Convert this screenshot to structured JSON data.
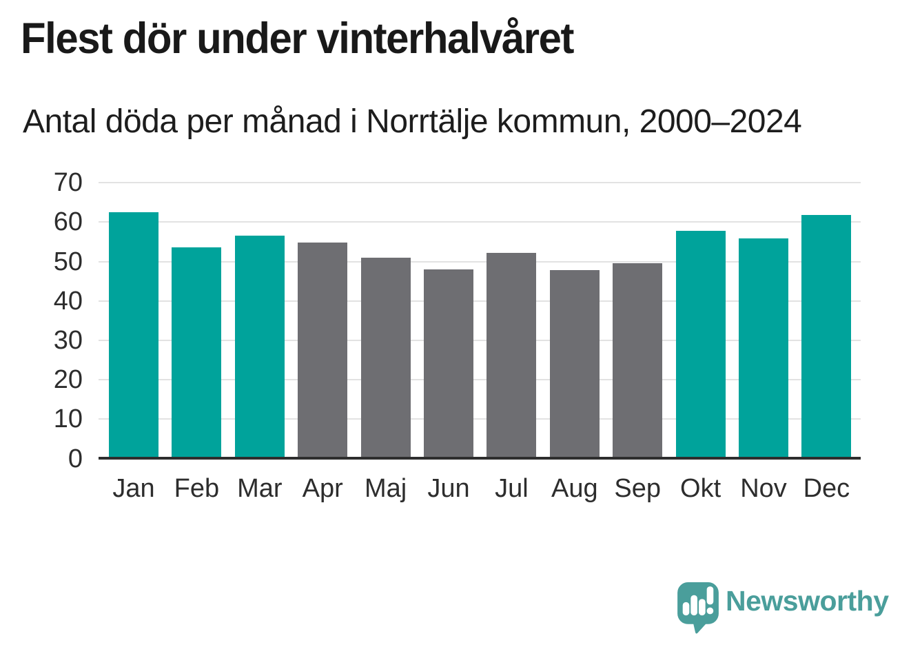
{
  "title": "Flest dör under vinterhalvåret",
  "subtitle": "Antal döda per månad i Norrtälje kommun, 2000–2024",
  "footer": {
    "brand": "Newsworthy",
    "logo_icon": "newsworthy-speech-bubble-bar-chart-icon"
  },
  "colors": {
    "winter_bar": "#00a39b",
    "summer_bar": "#6e6e72",
    "axis_line": "#2e2e2e",
    "gridline": "#e2e2e2",
    "label_text": "#2d2d2d",
    "title_text": "#191919",
    "brand": "#4a9e9b",
    "background": "#ffffff"
  },
  "chart_data": {
    "type": "bar",
    "title": "Flest dör under vinterhalvåret",
    "subtitle": "Antal döda per månad i Norrtälje kommun, 2000–2024",
    "categories": [
      "Jan",
      "Feb",
      "Mar",
      "Apr",
      "Maj",
      "Jun",
      "Jul",
      "Aug",
      "Sep",
      "Okt",
      "Nov",
      "Dec"
    ],
    "values": [
      62.5,
      53.6,
      56.6,
      54.8,
      50.9,
      48.0,
      52.1,
      47.8,
      49.5,
      57.7,
      55.8,
      61.8
    ],
    "series_note": "teal = winter half-year months (Jan–Mar, Okt–Dec), gray = summer half-year months (Apr–Sep)",
    "bar_palette": [
      "winter",
      "winter",
      "winter",
      "summer",
      "summer",
      "summer",
      "summer",
      "summer",
      "summer",
      "winter",
      "winter",
      "winter"
    ],
    "xlabel": "",
    "ylabel": "",
    "ylim": [
      0,
      70
    ],
    "yticks": [
      0,
      10,
      20,
      30,
      40,
      50,
      60,
      70
    ],
    "grid": true,
    "legend": false
  }
}
